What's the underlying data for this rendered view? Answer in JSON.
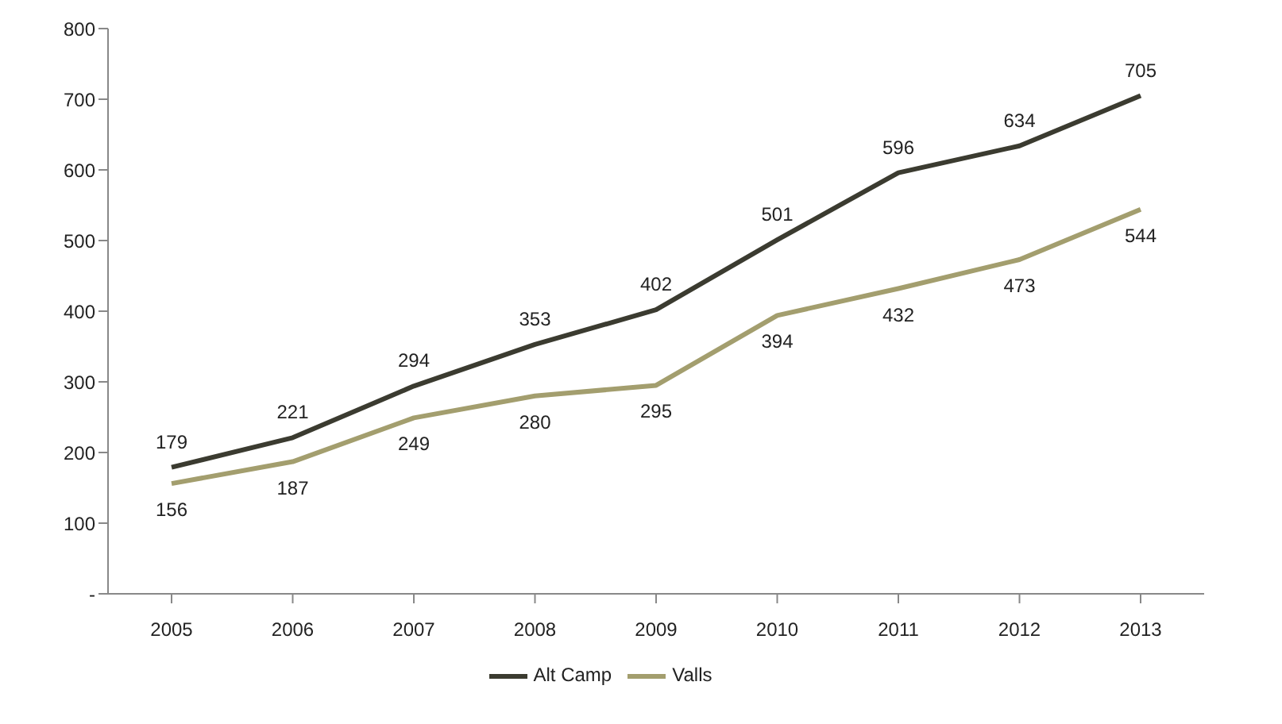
{
  "chart_data": {
    "type": "line",
    "categories": [
      "2005",
      "2006",
      "2007",
      "2008",
      "2009",
      "2010",
      "2011",
      "2012",
      "2013"
    ],
    "series": [
      {
        "name": "Valls",
        "color": "#a39e6e",
        "values": [
          156,
          187,
          249,
          280,
          295,
          394,
          432,
          473,
          544
        ]
      },
      {
        "name": "Alt Camp",
        "color": "#3b3b30",
        "values": [
          179,
          221,
          294,
          353,
          402,
          501,
          596,
          634,
          705
        ]
      }
    ],
    "ylim": [
      0,
      800
    ],
    "yticks": [
      {
        "value": 0,
        "label": "-"
      },
      100,
      200,
      300,
      400,
      500,
      600,
      700,
      800
    ],
    "grid": false,
    "legend": "bottom",
    "data_labels": true,
    "marker": "none",
    "line_style": "solid"
  }
}
